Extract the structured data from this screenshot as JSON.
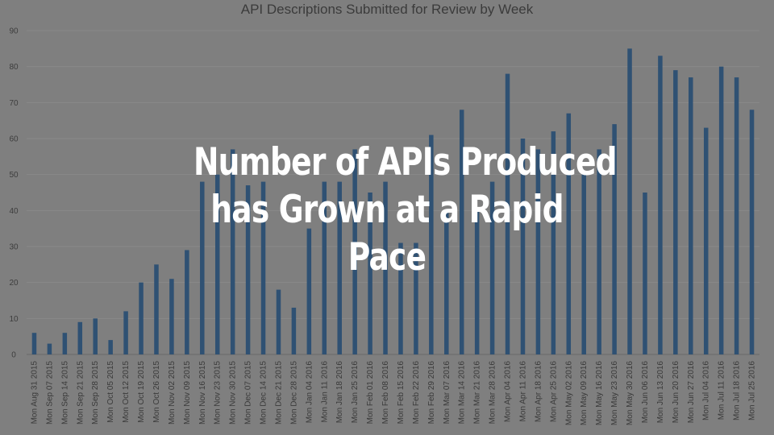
{
  "overlay": {
    "lines": [
      "Number of APIs Produced",
      "has Grown at a Rapid",
      "Pace"
    ]
  },
  "chart_data": {
    "type": "bar",
    "title": "API Descriptions Submitted for Review by Week",
    "xlabel": "",
    "ylabel": "",
    "ylim": [
      0,
      90
    ],
    "yticks": [
      0,
      10,
      20,
      30,
      40,
      50,
      60,
      70,
      80,
      90
    ],
    "grid": true,
    "legend": "none",
    "bar_color": "#2f5173",
    "categories": [
      "Mon Aug 31 2015",
      "Mon Sep 07 2015",
      "Mon Sep 14 2015",
      "Mon Sep 21 2015",
      "Mon Sep 28 2015",
      "Mon Oct 05 2015",
      "Mon Oct 12 2015",
      "Mon Oct 19 2015",
      "Mon Oct 26 2015",
      "Mon Nov 02 2015",
      "Mon Nov 09 2015",
      "Mon Nov 16 2015",
      "Mon Nov 23 2015",
      "Mon Nov 30 2015",
      "Mon Dec 07 2015",
      "Mon Dec 14 2015",
      "Mon Dec 21 2015",
      "Mon Dec 28 2015",
      "Mon Jan 04 2016",
      "Mon Jan 11 2016",
      "Mon Jan 18 2016",
      "Mon Jan 25 2016",
      "Mon Feb 01 2016",
      "Mon Feb 08 2016",
      "Mon Feb 15 2016",
      "Mon Feb 22 2016",
      "Mon Feb 29 2016",
      "Mon Mar 07 2016",
      "Mon Mar 14 2016",
      "Mon Mar 21 2016",
      "Mon Mar 28 2016",
      "Mon Apr 04 2016",
      "Mon Apr 11 2016",
      "Mon Apr 18 2016",
      "Mon Apr 25 2016",
      "Mon May 02 2016",
      "Mon May 09 2016",
      "Mon May 16 2016",
      "Mon May 23 2016",
      "Mon May 30 2016",
      "Mon Jun 06 2016",
      "Mon Jun 13 2016",
      "Mon Jun 20 2016",
      "Mon Jun 27 2016",
      "Mon Jul 04 2016",
      "Mon Jul 11 2016",
      "Mon Jul 18 2016",
      "Mon Jul 25 2016"
    ],
    "values": [
      6,
      3,
      6,
      9,
      10,
      4,
      12,
      20,
      25,
      21,
      29,
      48,
      50,
      57,
      47,
      48,
      18,
      13,
      35,
      48,
      48,
      57,
      45,
      48,
      31,
      31,
      61,
      40,
      68,
      40,
      48,
      78,
      60,
      57,
      62,
      67,
      50,
      57,
      64,
      85,
      45,
      83,
      79,
      77,
      63,
      80,
      77,
      68
    ]
  }
}
